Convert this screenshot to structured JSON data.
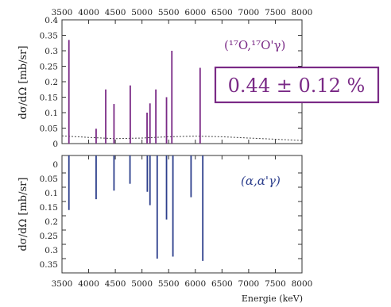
{
  "colors": {
    "top_series": "#7a2a86",
    "bottom_series": "#2d3f8c",
    "axis": "#333333",
    "ratio_box": "#7a2a86",
    "reaction_top": "#7a2a86",
    "reaction_bottom": "#2d3f8c"
  },
  "ratio_box": {
    "text": "0.44 ± 0.12 %"
  },
  "chart_data": [
    {
      "type": "bar",
      "panel": "top",
      "title": "",
      "ylabel": "dσ/dΩ [mb/sr]",
      "xlabel": "",
      "xlim": [
        3500,
        8000
      ],
      "ylim": [
        0,
        0.4
      ],
      "x_ticks": [
        3500,
        4000,
        4500,
        5000,
        5500,
        6000,
        6500,
        7000,
        7500,
        8000
      ],
      "x_tick_labels": [
        "3500",
        "4000",
        "4500",
        "5000",
        "5500",
        "6000",
        "6500",
        "7000",
        "7500",
        "8000"
      ],
      "y_ticks": [
        0,
        0.05,
        0.1,
        0.15,
        0.2,
        0.25,
        0.3,
        0.35,
        0.4
      ],
      "y_tick_labels": [
        "0",
        "0.05",
        "0.1",
        "0.15",
        "0.2",
        "0.25",
        "0.3",
        "0.35",
        "0.4"
      ],
      "x_tick_position": "top",
      "annotation": "(¹⁷O,¹⁷O'γ)",
      "series": [
        {
          "x": [
            3630,
            4140,
            4320,
            4475,
            4780,
            5095,
            5150,
            5260,
            5460,
            5560,
            6090
          ],
          "values": [
            0.335,
            0.048,
            0.175,
            0.128,
            0.188,
            0.1,
            0.13,
            0.175,
            0.15,
            0.3,
            0.245
          ]
        }
      ],
      "background_curve": {
        "x": [
          3500,
          4000,
          4500,
          5000,
          5500,
          6000,
          6500,
          7000,
          7500,
          8000
        ],
        "values": [
          0.025,
          0.02,
          0.016,
          0.018,
          0.022,
          0.024,
          0.022,
          0.018,
          0.014,
          0.01
        ]
      },
      "grid": false
    },
    {
      "type": "bar",
      "panel": "bottom",
      "title": "",
      "ylabel": "dσ/dΩ [mb/sr]",
      "xlabel": "Energie (keV)",
      "xlim": [
        3500,
        8000
      ],
      "ylim": [
        0,
        0.4
      ],
      "y_inverted": true,
      "x_ticks": [
        3500,
        4000,
        4500,
        5000,
        5500,
        6000,
        6500,
        7000,
        7500,
        8000
      ],
      "x_tick_labels": [
        "3500",
        "4000",
        "4500",
        "5000",
        "5500",
        "6000",
        "6500",
        "7000",
        "7500",
        "8000"
      ],
      "y_ticks": [
        0,
        0.05,
        0.1,
        0.15,
        0.2,
        0.25,
        0.3,
        0.35
      ],
      "y_tick_labels": [
        "0.05",
        "0.1",
        "0.15",
        "0.2",
        "0.25",
        "0.3",
        "0.35"
      ],
      "y_tick_values": [
        0.05,
        0.1,
        0.15,
        0.2,
        0.25,
        0.3,
        0.35
      ],
      "extra_top_label": "0",
      "x_tick_position": "bottom",
      "annotation": "(α,α'γ)",
      "series": [
        {
          "x": [
            3630,
            4140,
            4475,
            4775,
            5100,
            5150,
            5285,
            5460,
            5580,
            5920,
            6140
          ],
          "values": [
            0.18,
            0.142,
            0.112,
            0.088,
            0.116,
            0.163,
            0.35,
            0.213,
            0.343,
            0.135,
            0.358
          ]
        }
      ],
      "grid": false
    }
  ]
}
